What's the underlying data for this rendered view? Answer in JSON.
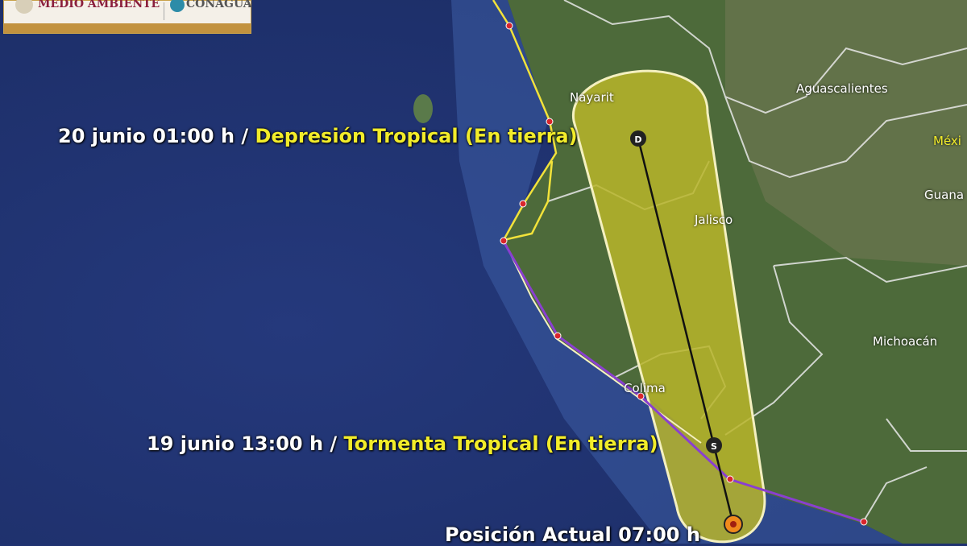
{
  "header": {
    "logo_text_1": "MEDIO AMBIENTE",
    "logo_text_2": "CONAGUA"
  },
  "labels": {
    "forecast_1_time": "20 junio 01:00 h /",
    "forecast_1_status": "Depresión  Tropical (En tierra)",
    "forecast_2_time": "19 junio 13:00 h /",
    "forecast_2_status": "Tormenta  Tropical (En tierra)",
    "current_position": "Posición Actual 07:00 h"
  },
  "places": [
    "Nayarit",
    "Aguascalientes",
    "Méxi",
    "Guana",
    "Jalisco",
    "Michoacán",
    "Colima"
  ],
  "markers": {
    "depression": "D",
    "storm": "S"
  },
  "colors": {
    "cone": "#b8b52a",
    "track": "#8a3fd0",
    "coast_watch": "#f2e23a",
    "current": "#f08a1c",
    "ocean": "#1f3270",
    "land": "#4f6b3a"
  }
}
